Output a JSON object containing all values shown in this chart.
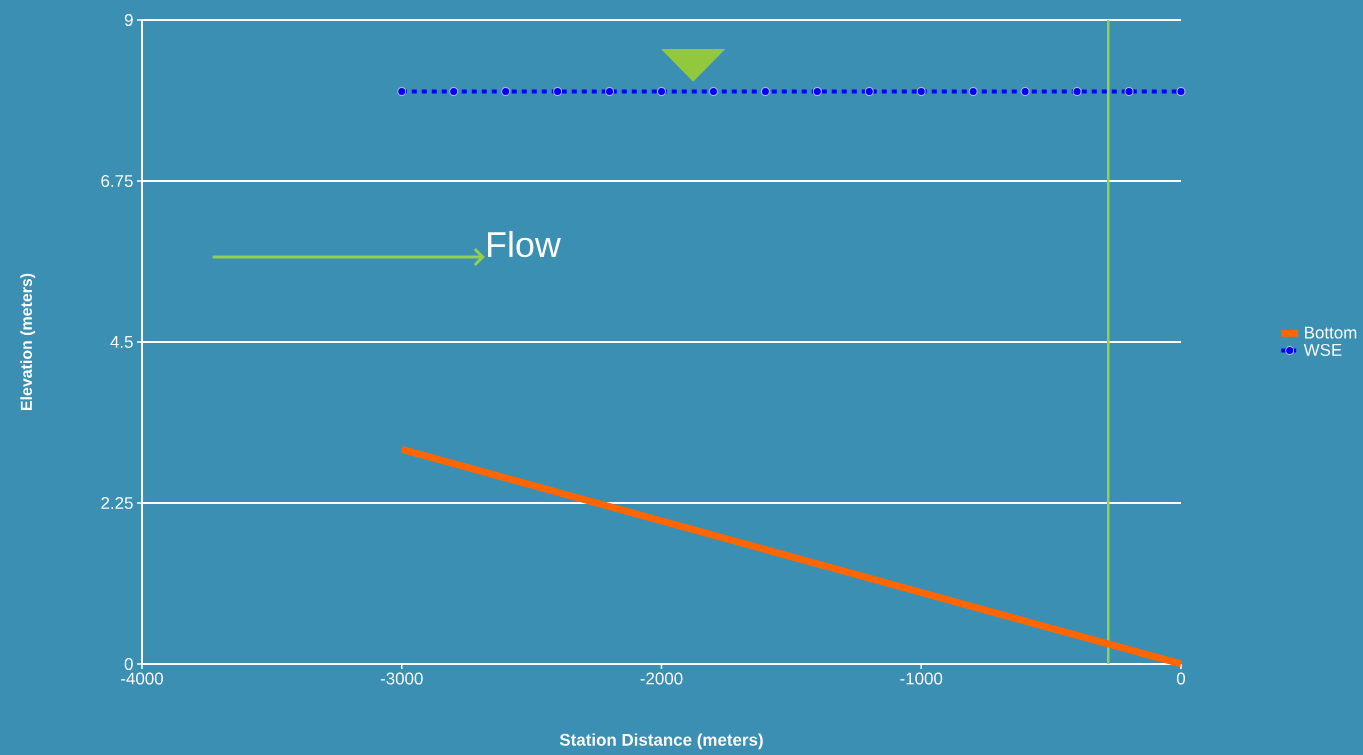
{
  "chart_data": {
    "type": "line",
    "xlabel": "Station Distance (meters)",
    "ylabel": "Elevation (meters)",
    "series": [
      {
        "name": "Bottom",
        "color": "#ff6600",
        "x": [
          -3000,
          0
        ],
        "values": [
          3,
          0
        ],
        "line_style": "solid",
        "marker": "none"
      },
      {
        "name": "WSE",
        "color": "#0000ff",
        "x": [
          -3000,
          -2800,
          -2600,
          -2400,
          -2200,
          -2000,
          -1800,
          -1600,
          -1400,
          -1200,
          -1000,
          -800,
          -600,
          -400,
          -200,
          0
        ],
        "values": [
          8,
          8,
          8,
          8,
          8,
          8,
          8,
          8,
          8,
          8,
          8,
          8,
          8,
          8,
          8,
          8
        ],
        "line_style": "dotted",
        "marker": "circle"
      }
    ],
    "xlim": [
      -4000,
      0
    ],
    "xticks": [
      -4000,
      -3000,
      -2000,
      -1000,
      0
    ],
    "ylim": [
      0,
      9
    ],
    "yticks": [
      0,
      2.25,
      4.5,
      6.75,
      9
    ],
    "grid": "y",
    "legend": "right",
    "ref_lines": [
      {
        "axis": "x",
        "value": -280,
        "color": "#92d050"
      }
    ],
    "annotations": [
      "Flow"
    ]
  }
}
